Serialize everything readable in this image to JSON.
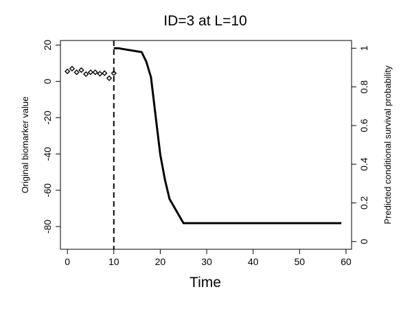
{
  "chart_data": {
    "type": "line",
    "title": "ID=3 at L=10",
    "xlabel": "Time",
    "ylabel_left": "Original biomarker value",
    "ylabel_right": "Predicted conditional survival probability",
    "xlim": [
      -1.5,
      61.2
    ],
    "ylim_left": [
      -92.5,
      22.5
    ],
    "ylim_right": [
      -0.04,
      1.04
    ],
    "x_ticks": [
      0,
      10,
      20,
      30,
      40,
      50,
      60
    ],
    "y_left_ticks": [
      20,
      0,
      -20,
      -40,
      -60,
      -80
    ],
    "y_right_ticks": [
      0,
      0.2,
      0.4,
      0.6,
      0.8,
      1
    ],
    "landmark_time": 10,
    "grid": false,
    "biomarker_series": {
      "axis": "left",
      "marker": "open-diamond",
      "points": [
        {
          "x": 0,
          "y": 5.5
        },
        {
          "x": 1,
          "y": 7.0
        },
        {
          "x": 2,
          "y": 5.0
        },
        {
          "x": 3,
          "y": 6.2
        },
        {
          "x": 4,
          "y": 4.0
        },
        {
          "x": 5,
          "y": 5.0
        },
        {
          "x": 6,
          "y": 5.0
        },
        {
          "x": 7,
          "y": 4.2
        },
        {
          "x": 8,
          "y": 4.5
        },
        {
          "x": 9,
          "y": 1.7
        },
        {
          "x": 10,
          "y": 4.5
        }
      ]
    },
    "survival_series": {
      "axis": "right",
      "points": [
        {
          "x": 10,
          "y": 1.0
        },
        {
          "x": 11,
          "y": 1.0
        },
        {
          "x": 16,
          "y": 0.98
        },
        {
          "x": 17,
          "y": 0.93
        },
        {
          "x": 18,
          "y": 0.85
        },
        {
          "x": 19,
          "y": 0.65
        },
        {
          "x": 20,
          "y": 0.45
        },
        {
          "x": 21,
          "y": 0.32
        },
        {
          "x": 22,
          "y": 0.22
        },
        {
          "x": 25,
          "y": 0.095
        },
        {
          "x": 59,
          "y": 0.095
        }
      ]
    }
  }
}
